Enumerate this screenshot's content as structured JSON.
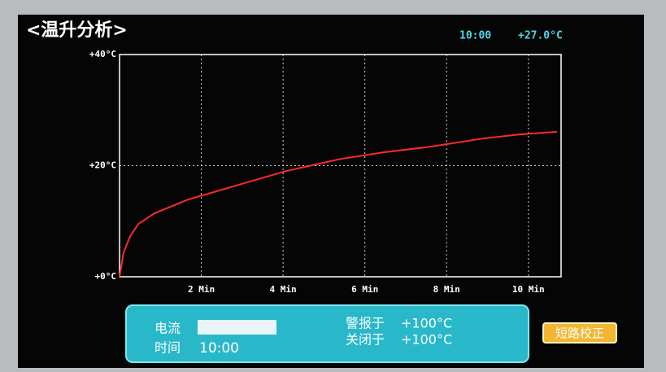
{
  "screen": {
    "title": "<温升分析>",
    "clock": "10:00",
    "temperature": "+27.0°C",
    "panel": {
      "current_label": "电流",
      "time_label": "时间",
      "time_value": "10:00",
      "alarm_label": "警报于",
      "alarm_value": "+100°C",
      "off_label": "关闭于",
      "off_value": "+100°C"
    },
    "button": "短路校正"
  },
  "chart_data": {
    "type": "line",
    "x": [
      0,
      0.1,
      0.26,
      0.46,
      0.85,
      1.68,
      3.03,
      4.06,
      5.4,
      6.46,
      7.6,
      8.9,
      9.76,
      10.7
    ],
    "series": [
      {
        "color": "#ff2a2a",
        "values": [
          0,
          4.4,
          7.3,
          9.5,
          11.4,
          13.9,
          16.8,
          19.0,
          21.2,
          22.4,
          23.4,
          24.9,
          25.6,
          26.1
        ]
      }
    ],
    "xlim": [
      0,
      10.8
    ],
    "ylim": [
      0,
      40
    ],
    "xticks": [
      {
        "value": 2,
        "label": "2 Min"
      },
      {
        "value": 4,
        "label": "4 Min"
      },
      {
        "value": 6,
        "label": "6 Min"
      },
      {
        "value": 8,
        "label": "8 Min"
      },
      {
        "value": 10,
        "label": "10 Min"
      }
    ],
    "yticks": [
      {
        "value": 0,
        "label": "+0°C"
      },
      {
        "value": 20,
        "label": "+20°C"
      },
      {
        "value": 40,
        "label": "+40°C"
      }
    ],
    "grid": true
  }
}
